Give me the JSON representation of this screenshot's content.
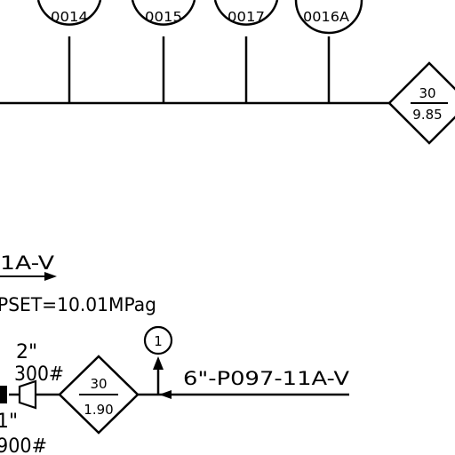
{
  "instruments": [
    {
      "tag": "0014"
    },
    {
      "tag": "0015"
    },
    {
      "tag": "0017"
    },
    {
      "tag": "0016A"
    }
  ],
  "diamond_top": {
    "top": "30",
    "bottom": "9.85"
  },
  "diamond_bottom": {
    "top": "30",
    "bottom": "1.90"
  },
  "notes": {
    "line_partial": "1A-V",
    "set_pressure": "PSET=10.01MPag",
    "size_2in": "2\"",
    "rating_300": "300#",
    "size_frag": "1\"",
    "rating_900": "900#",
    "main_line": "6\"-P097-11A-V"
  },
  "note_bubble": {
    "label": "1"
  }
}
